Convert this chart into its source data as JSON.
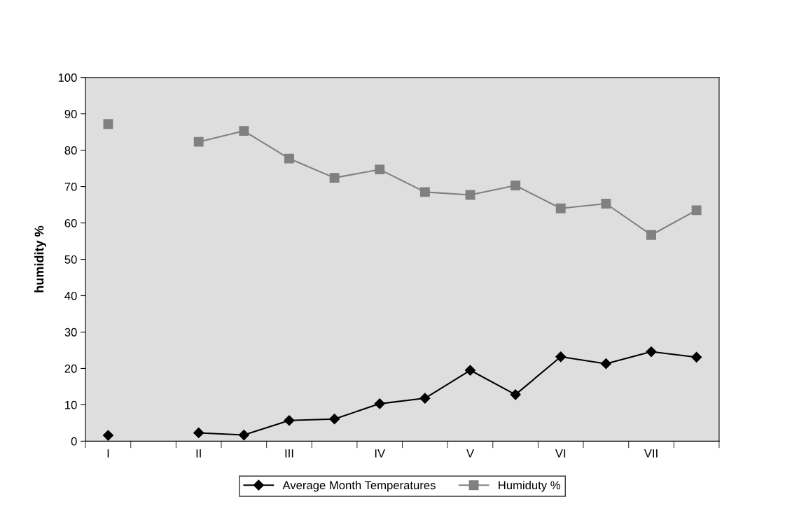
{
  "chart_data": {
    "type": "line",
    "ylabel": "humidity %",
    "categories": [
      "I",
      null,
      "II",
      null,
      "III",
      null,
      "IV",
      null,
      "V",
      null,
      "VI",
      null,
      "VII",
      null
    ],
    "series": [
      {
        "name": "Average Month Temperatures",
        "color": "#000000",
        "marker": "diamond",
        "values": [
          1.6,
          null,
          2.3,
          1.7,
          5.7,
          6.1,
          10.3,
          11.8,
          19.5,
          12.8,
          23.2,
          21.3,
          24.6,
          23.1
        ]
      },
      {
        "name": "Humiduty %",
        "color": "#808080",
        "marker": "square",
        "values": [
          87.2,
          null,
          82.3,
          85.3,
          77.7,
          72.4,
          74.7,
          68.5,
          67.7,
          70.3,
          64.0,
          65.3,
          56.7,
          63.5
        ]
      }
    ],
    "ylim": [
      0,
      100
    ],
    "yticks": [
      0,
      10,
      20,
      30,
      40,
      50,
      60,
      70,
      80,
      90,
      100
    ],
    "grid": false,
    "legend": "bottom"
  }
}
